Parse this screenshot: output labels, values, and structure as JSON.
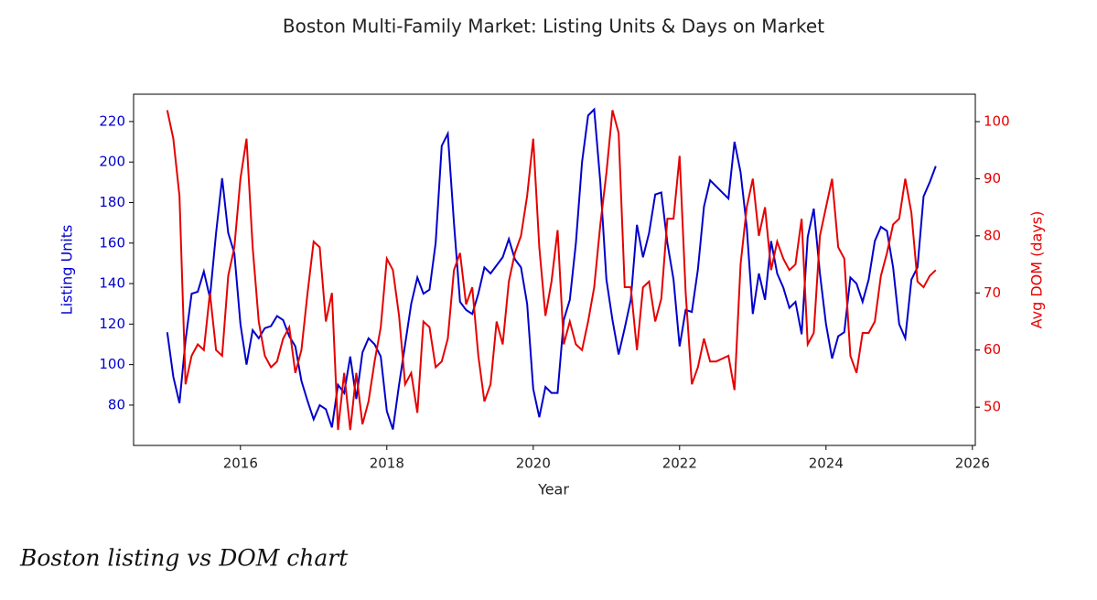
{
  "chart_data": {
    "type": "line",
    "title": "Boston Multi-Family Market: Listing Units & Days on Market",
    "xlabel": "Year",
    "ylabel": "Listing Units",
    "y2label": "Avg DOM (days)",
    "caption": "Boston listing vs DOM chart",
    "x": [
      2015,
      2015.083,
      2015.167,
      2015.25,
      2015.333,
      2015.417,
      2015.5,
      2015.583,
      2015.667,
      2015.75,
      2015.833,
      2015.917,
      2016,
      2016.083,
      2016.167,
      2016.25,
      2016.333,
      2016.417,
      2016.5,
      2016.583,
      2016.667,
      2016.75,
      2016.833,
      2016.917,
      2017,
      2017.083,
      2017.167,
      2017.25,
      2017.333,
      2017.417,
      2017.5,
      2017.583,
      2017.667,
      2017.75,
      2017.833,
      2017.917,
      2018,
      2018.083,
      2018.167,
      2018.25,
      2018.333,
      2018.417,
      2018.5,
      2018.583,
      2018.667,
      2018.75,
      2018.833,
      2018.917,
      2019,
      2019.083,
      2019.167,
      2019.25,
      2019.333,
      2019.417,
      2019.5,
      2019.583,
      2019.667,
      2019.75,
      2019.833,
      2019.917,
      2020,
      2020.083,
      2020.167,
      2020.25,
      2020.333,
      2020.417,
      2020.5,
      2020.583,
      2020.667,
      2020.75,
      2020.833,
      2020.917,
      2021,
      2021.083,
      2021.167,
      2021.25,
      2021.333,
      2021.417,
      2021.5,
      2021.583,
      2021.667,
      2021.75,
      2021.833,
      2021.917,
      2022,
      2022.083,
      2022.167,
      2022.25,
      2022.333,
      2022.417,
      2022.5,
      2022.583,
      2022.667,
      2022.75,
      2022.833,
      2022.917,
      2023,
      2023.083,
      2023.167,
      2023.25,
      2023.333,
      2023.417,
      2023.5,
      2023.583,
      2023.667,
      2023.75,
      2023.833,
      2023.917,
      2024,
      2024.083,
      2024.167,
      2024.25,
      2024.333,
      2024.417,
      2024.5,
      2024.583,
      2024.667,
      2024.75,
      2024.833,
      2024.917,
      2025,
      2025.083,
      2025.167,
      2025.25,
      2025.333,
      2025.417,
      2025.5
    ],
    "series": [
      {
        "name": "Listing Units",
        "color": "#0000cc",
        "axis": "y",
        "values": [
          116,
          94,
          81,
          112,
          135,
          136,
          146,
          133,
          165,
          192,
          165,
          155,
          120,
          100,
          117,
          113,
          118,
          119,
          124,
          122,
          114,
          109,
          92,
          82,
          73,
          80,
          78,
          69,
          90,
          86,
          104,
          83,
          106,
          113,
          110,
          104,
          77,
          68,
          90,
          110,
          130,
          143,
          135,
          137,
          160,
          208,
          214,
          170,
          131,
          127,
          125,
          135,
          148,
          145,
          149,
          153,
          162,
          152,
          148,
          130,
          88,
          74,
          89,
          86,
          86,
          122,
          132,
          160,
          200,
          223,
          226,
          190,
          142,
          122,
          105,
          118,
          132,
          169,
          153,
          165,
          184,
          185,
          160,
          142,
          109,
          127,
          126,
          147,
          178,
          191,
          188,
          185,
          182,
          210,
          195,
          168,
          125,
          145,
          132,
          161,
          145,
          138,
          128,
          131,
          115,
          163,
          177,
          145,
          120,
          103,
          114,
          116,
          143,
          140,
          131,
          142,
          161,
          168,
          166,
          148,
          120,
          113,
          142,
          148,
          183,
          190,
          198
        ]
      },
      {
        "name": "Avg DOM (days)",
        "color": "#e60000",
        "axis": "y2",
        "values": [
          102,
          97,
          87,
          54,
          59,
          61,
          60,
          70,
          60,
          59,
          73,
          78,
          90,
          97,
          78,
          65,
          59,
          57,
          58,
          62,
          64,
          56,
          60,
          70,
          79,
          78,
          65,
          70,
          46,
          56,
          46,
          56,
          47,
          51,
          58,
          64,
          76,
          74,
          66,
          54,
          56,
          49,
          65,
          64,
          57,
          58,
          62,
          74,
          77,
          68,
          71,
          59,
          51,
          54,
          65,
          61,
          72,
          77,
          80,
          87,
          97,
          78,
          66,
          72,
          81,
          61,
          65,
          61,
          60,
          65,
          71,
          82,
          91,
          102,
          98,
          71,
          71,
          60,
          71,
          72,
          65,
          69,
          83,
          83,
          94,
          70,
          54,
          57,
          62,
          58,
          58,
          58.5,
          59,
          53,
          75,
          85,
          90,
          80,
          85,
          74,
          79,
          76,
          74,
          75,
          83,
          61,
          63,
          80,
          85,
          90,
          78,
          76,
          59,
          56,
          63,
          63,
          65,
          73,
          77,
          82,
          83,
          90,
          84,
          72,
          71,
          73,
          74
        ]
      }
    ],
    "xlim": [
      2014.54,
      2026.04
    ],
    "xticks": [
      2016,
      2018,
      2020,
      2022,
      2024,
      2026
    ],
    "ylim": [
      60.1,
      233.5
    ],
    "yticks": [
      80,
      100,
      120,
      140,
      160,
      180,
      200,
      220
    ],
    "y2lim": [
      43.3,
      104.8
    ],
    "y2ticks": [
      50,
      60,
      70,
      80,
      90,
      100
    ]
  }
}
